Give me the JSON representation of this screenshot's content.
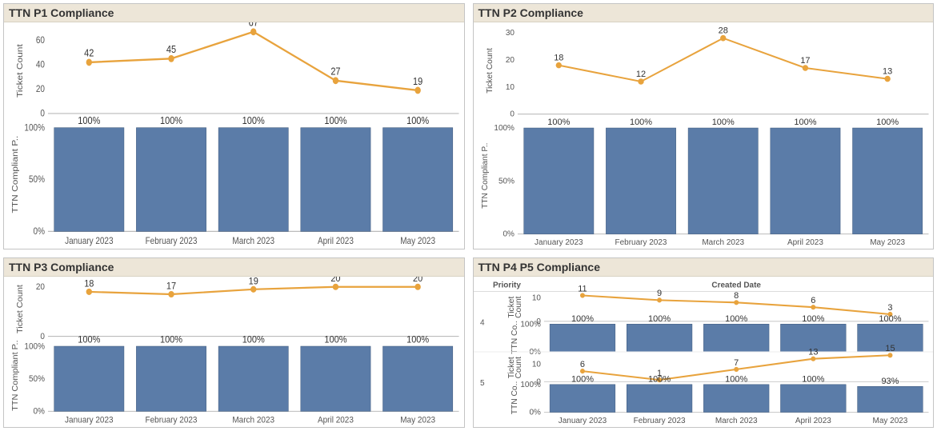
{
  "colors": {
    "line_stroke": "#e8a33d",
    "marker_fill": "#e8a33d",
    "bar_fill": "#5b7ca8",
    "bar_border": "#3f5a7d",
    "text": "#333333",
    "tick_text": "#555555",
    "panel_title_bg": "#ede6d8",
    "panel_border": "#c4c4c4",
    "background": "#ffffff"
  },
  "panels": [
    {
      "key": "p1",
      "title": "TTN P1 Compliance",
      "type": "combo-line-bar",
      "line": {
        "ylabel": "Ticket Count",
        "ylim": [
          0,
          70
        ],
        "yticks": [
          0,
          20,
          40,
          60
        ],
        "values": [
          42,
          45,
          67,
          27,
          19
        ],
        "stroke_width": 2,
        "marker": "circle"
      },
      "bars": {
        "ylabel": "TTN Compliant P..",
        "ylim": [
          0,
          110
        ],
        "yticks_pct": [
          0,
          50,
          100
        ],
        "values_pct": [
          100,
          100,
          100,
          100,
          100
        ],
        "bar_width": 0.85
      },
      "categories": [
        "January 2023",
        "February 2023",
        "March 2023",
        "April 2023",
        "May 2023"
      ]
    },
    {
      "key": "p2",
      "title": "TTN P2 Compliance",
      "type": "combo-line-bar",
      "line": {
        "ylabel": "Ticket Count",
        "ylim": [
          0,
          32
        ],
        "yticks": [
          0,
          10,
          20,
          30
        ],
        "values": [
          18,
          12,
          28,
          17,
          13
        ],
        "stroke_width": 2,
        "marker": "circle"
      },
      "bars": {
        "ylabel": "TTN Compliant P..",
        "ylim": [
          0,
          110
        ],
        "yticks_pct": [
          0,
          50,
          100
        ],
        "values_pct": [
          100,
          100,
          100,
          100,
          100
        ],
        "bar_width": 0.85
      },
      "categories": [
        "January 2023",
        "February 2023",
        "March 2023",
        "April 2023",
        "May 2023"
      ]
    },
    {
      "key": "p3",
      "title": "TTN P3 Compliance",
      "type": "combo-line-bar",
      "line": {
        "ylabel": "Ticket Count",
        "ylim": [
          0,
          22
        ],
        "yticks": [
          0,
          20
        ],
        "values": [
          18,
          17,
          19,
          20,
          20
        ],
        "stroke_width": 2,
        "marker": "circle"
      },
      "bars": {
        "ylabel": "TTN Compliant P..",
        "ylim": [
          0,
          110
        ],
        "yticks_pct": [
          0,
          50,
          100
        ],
        "values_pct": [
          100,
          100,
          100,
          100,
          100
        ],
        "bar_width": 0.85
      },
      "categories": [
        "January 2023",
        "February 2023",
        "March 2023",
        "April 2023",
        "May 2023"
      ]
    },
    {
      "key": "p4p5",
      "title": "TTN P4 P5 Compliance",
      "type": "faceted-combo",
      "facet_header_left": "Priority",
      "facet_header_right": "Created Date",
      "categories": [
        "January 2023",
        "February 2023",
        "March 2023",
        "April 2023",
        "May 2023"
      ],
      "rows": [
        {
          "priority": "4",
          "line": {
            "ylabel": "Ticket\nCount",
            "ylim": [
              0,
              12
            ],
            "yticks": [
              0,
              10
            ],
            "values": [
              11,
              9,
              8,
              6,
              3
            ],
            "stroke_width": 2,
            "marker": "circle"
          },
          "bars": {
            "ylabel": "TTN Co..",
            "ylim": [
              0,
              110
            ],
            "yticks_pct": [
              0,
              100
            ],
            "values_pct": [
              100,
              100,
              100,
              100,
              100
            ],
            "bar_width": 0.85
          }
        },
        {
          "priority": "5",
          "line": {
            "ylabel": "Ticket\nCount",
            "ylim": [
              0,
              16
            ],
            "yticks": [
              0,
              10
            ],
            "values": [
              6,
              1,
              7,
              13,
              15
            ],
            "stroke_width": 2,
            "marker": "circle"
          },
          "bars": {
            "ylabel": "TTN Co..",
            "ylim": [
              0,
              110
            ],
            "yticks_pct": [
              0,
              100
            ],
            "values_pct": [
              100,
              100,
              100,
              100,
              93
            ],
            "bar_width": 0.85
          }
        }
      ]
    }
  ]
}
